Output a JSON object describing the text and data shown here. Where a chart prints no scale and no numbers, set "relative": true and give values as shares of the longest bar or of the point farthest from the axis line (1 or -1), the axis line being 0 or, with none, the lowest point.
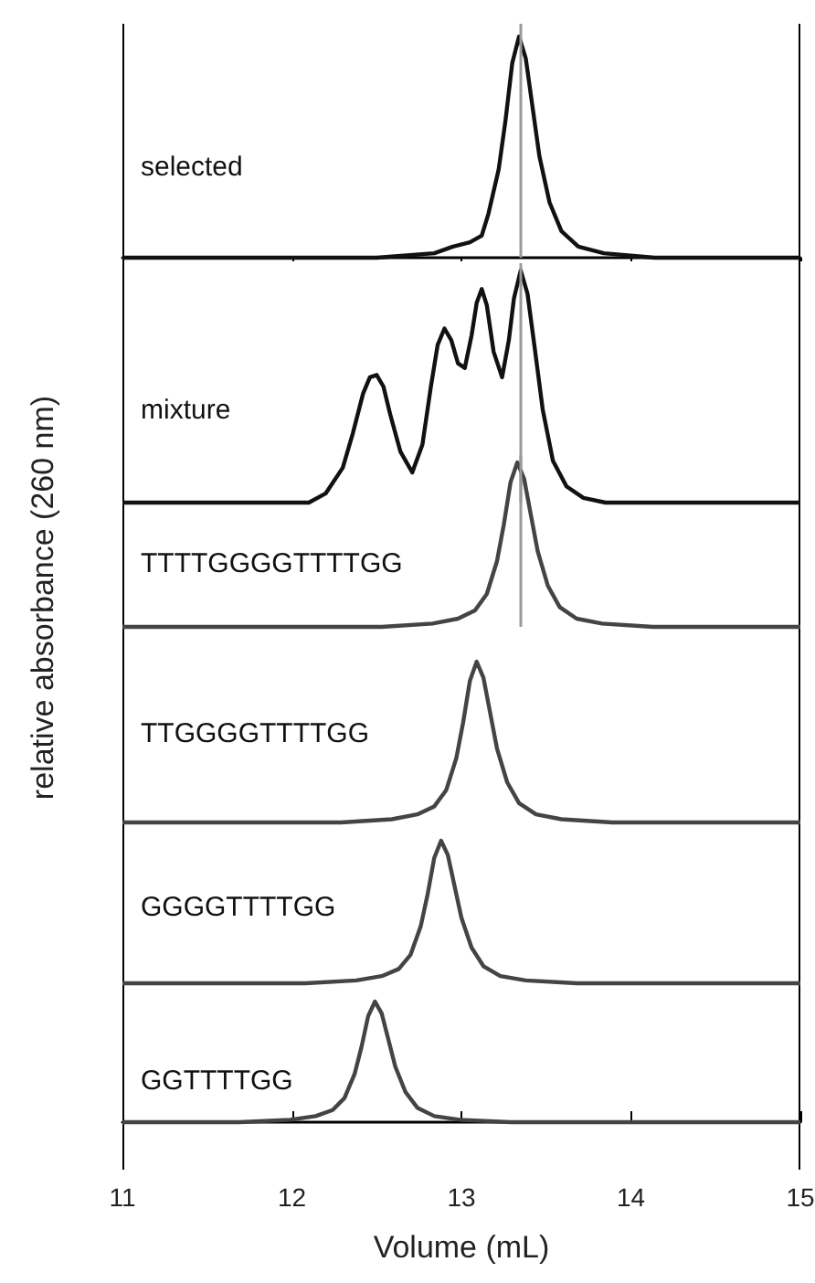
{
  "chart_data": [
    {
      "type": "line",
      "relative": true,
      "ylabel": "relative absorbance (260 nm)",
      "x": [
        11,
        12.5,
        12.84,
        12.95,
        13.05,
        13.12,
        13.16,
        13.22,
        13.26,
        13.3,
        13.34,
        13.38,
        13.42,
        13.46,
        13.52,
        13.59,
        13.69,
        13.84,
        14.14,
        15
      ],
      "series": [
        {
          "color": "#111111",
          "values": [
            0,
            0,
            0.02,
            0.05,
            0.07,
            0.1,
            0.2,
            0.4,
            0.62,
            0.88,
            1,
            0.9,
            0.68,
            0.46,
            0.25,
            0.12,
            0.05,
            0.02,
            0,
            0
          ]
        }
      ],
      "xlim": [
        11,
        15
      ],
      "xticks": [
        {
          "value": 11,
          "label": null
        },
        {
          "value": 12,
          "label": null
        },
        {
          "value": 13,
          "label": null
        },
        {
          "value": 14,
          "label": null
        },
        {
          "value": 15,
          "label": null
        }
      ],
      "tick_labels": false,
      "annotations": [
        "selected"
      ],
      "ref_lines": [
        {
          "axis": "x",
          "value": 13.35,
          "color": "#999999"
        }
      ],
      "marker": "none"
    },
    {
      "type": "line",
      "relative": true,
      "x": [
        11,
        12.1,
        12.2,
        12.3,
        12.36,
        12.42,
        12.46,
        12.5,
        12.54,
        12.58,
        12.64,
        12.71,
        12.77,
        12.82,
        12.86,
        12.9,
        12.94,
        12.98,
        13.02,
        13.06,
        13.09,
        13.12,
        13.15,
        13.19,
        13.24,
        13.28,
        13.31,
        13.35,
        13.39,
        13.43,
        13.48,
        13.54,
        13.62,
        13.72,
        13.85,
        15
      ],
      "series": [
        {
          "color": "#111111",
          "values": [
            0,
            0,
            0.04,
            0.15,
            0.3,
            0.47,
            0.54,
            0.55,
            0.5,
            0.38,
            0.22,
            0.13,
            0.25,
            0.5,
            0.68,
            0.75,
            0.7,
            0.6,
            0.58,
            0.72,
            0.86,
            0.92,
            0.85,
            0.65,
            0.54,
            0.7,
            0.88,
            1,
            0.9,
            0.68,
            0.4,
            0.18,
            0.07,
            0.02,
            0,
            0
          ]
        }
      ],
      "xlim": [
        11,
        15
      ],
      "tick_labels": false,
      "annotations": [
        "mixture"
      ],
      "ref_lines": [
        {
          "axis": "x",
          "value": 13.35,
          "color": "#999999"
        }
      ],
      "marker": "none"
    },
    {
      "type": "line",
      "relative": true,
      "x": [
        11,
        12.53,
        12.83,
        12.98,
        13.08,
        13.15,
        13.21,
        13.25,
        13.29,
        13.33,
        13.37,
        13.41,
        13.45,
        13.51,
        13.58,
        13.68,
        13.83,
        14.13,
        15
      ],
      "series": [
        {
          "color": "#444444",
          "values": [
            0,
            0,
            0.02,
            0.05,
            0.1,
            0.2,
            0.4,
            0.62,
            0.88,
            1,
            0.9,
            0.68,
            0.46,
            0.25,
            0.12,
            0.05,
            0.02,
            0,
            0
          ]
        }
      ],
      "xlim": [
        11,
        15
      ],
      "tick_labels": false,
      "annotations": [
        "TTTTGGGGTTTTGG"
      ],
      "ref_lines": [
        {
          "axis": "x",
          "value": 13.35,
          "color": "#999999"
        }
      ],
      "marker": "none"
    },
    {
      "type": "line",
      "relative": true,
      "x": [
        11,
        12.29,
        12.59,
        12.74,
        12.84,
        12.91,
        12.97,
        13.01,
        13.05,
        13.09,
        13.13,
        13.17,
        13.21,
        13.27,
        13.34,
        13.44,
        13.59,
        13.89,
        15
      ],
      "series": [
        {
          "color": "#444444",
          "values": [
            0,
            0,
            0.02,
            0.05,
            0.1,
            0.2,
            0.4,
            0.62,
            0.88,
            1,
            0.9,
            0.68,
            0.46,
            0.25,
            0.12,
            0.05,
            0.02,
            0,
            0
          ]
        }
      ],
      "xlim": [
        11,
        15
      ],
      "tick_labels": false,
      "annotations": [
        "TTGGGGTTTTGG"
      ],
      "marker": "none"
    },
    {
      "type": "line",
      "relative": true,
      "x": [
        11,
        12.08,
        12.38,
        12.53,
        12.63,
        12.7,
        12.76,
        12.8,
        12.84,
        12.88,
        12.92,
        12.96,
        13,
        13.06,
        13.13,
        13.23,
        13.38,
        13.68,
        15
      ],
      "series": [
        {
          "color": "#444444",
          "values": [
            0,
            0,
            0.02,
            0.05,
            0.1,
            0.2,
            0.4,
            0.62,
            0.88,
            1,
            0.9,
            0.68,
            0.46,
            0.25,
            0.12,
            0.05,
            0.02,
            0,
            0
          ]
        }
      ],
      "xlim": [
        11,
        15
      ],
      "tick_labels": false,
      "annotations": [
        "GGGGTTTTGG"
      ],
      "marker": "none"
    },
    {
      "type": "line",
      "relative": true,
      "xlabel": "Volume (mL)",
      "x": [
        11,
        11.69,
        11.99,
        12.14,
        12.24,
        12.31,
        12.37,
        12.41,
        12.45,
        12.49,
        12.53,
        12.57,
        12.61,
        12.67,
        12.74,
        12.84,
        12.99,
        13.29,
        15
      ],
      "series": [
        {
          "color": "#444444",
          "values": [
            0,
            0,
            0.02,
            0.05,
            0.1,
            0.2,
            0.4,
            0.62,
            0.88,
            1,
            0.9,
            0.68,
            0.46,
            0.25,
            0.12,
            0.05,
            0.02,
            0,
            0
          ]
        }
      ],
      "xlim": [
        11,
        15
      ],
      "xticks": [
        11,
        12,
        13,
        14,
        15
      ],
      "tick_labels": "x",
      "annotations": [
        "GGTTTTGG"
      ],
      "marker": "none"
    }
  ]
}
